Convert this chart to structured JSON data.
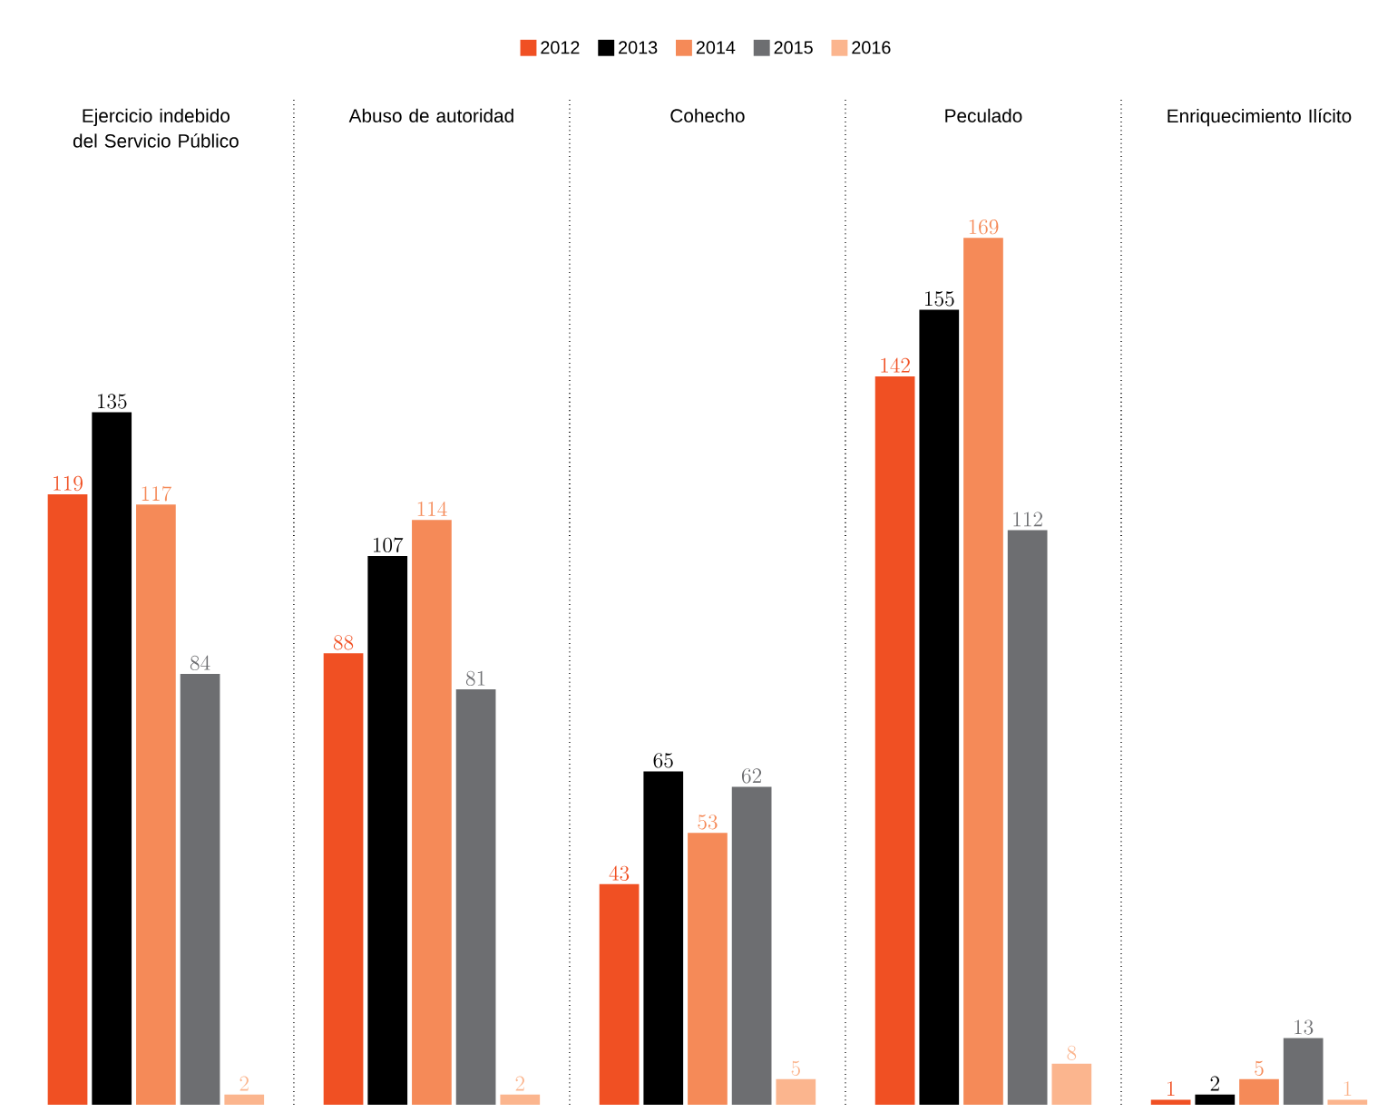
{
  "chart_data": {
    "type": "bar",
    "categories": [
      "Ejercicio indebido del Servicio Público",
      "Abuso de autoridad",
      "Cohecho",
      "Peculado",
      "Enriquecimiento Ilícito"
    ],
    "series": [
      {
        "name": "2012",
        "color": "#f05023",
        "values": [
          119,
          88,
          43,
          142,
          1
        ]
      },
      {
        "name": "2013",
        "color": "#000000",
        "values": [
          135,
          107,
          65,
          155,
          2
        ]
      },
      {
        "name": "2014",
        "color": "#f58a58",
        "values": [
          117,
          114,
          53,
          169,
          5
        ]
      },
      {
        "name": "2015",
        "color": "#6d6e71",
        "values": [
          84,
          81,
          62,
          112,
          13
        ]
      },
      {
        "name": "2016",
        "color": "#fbb58e",
        "values": [
          2,
          2,
          5,
          8,
          1
        ]
      }
    ],
    "data_labels": true,
    "grid": "x",
    "legend": "top"
  }
}
